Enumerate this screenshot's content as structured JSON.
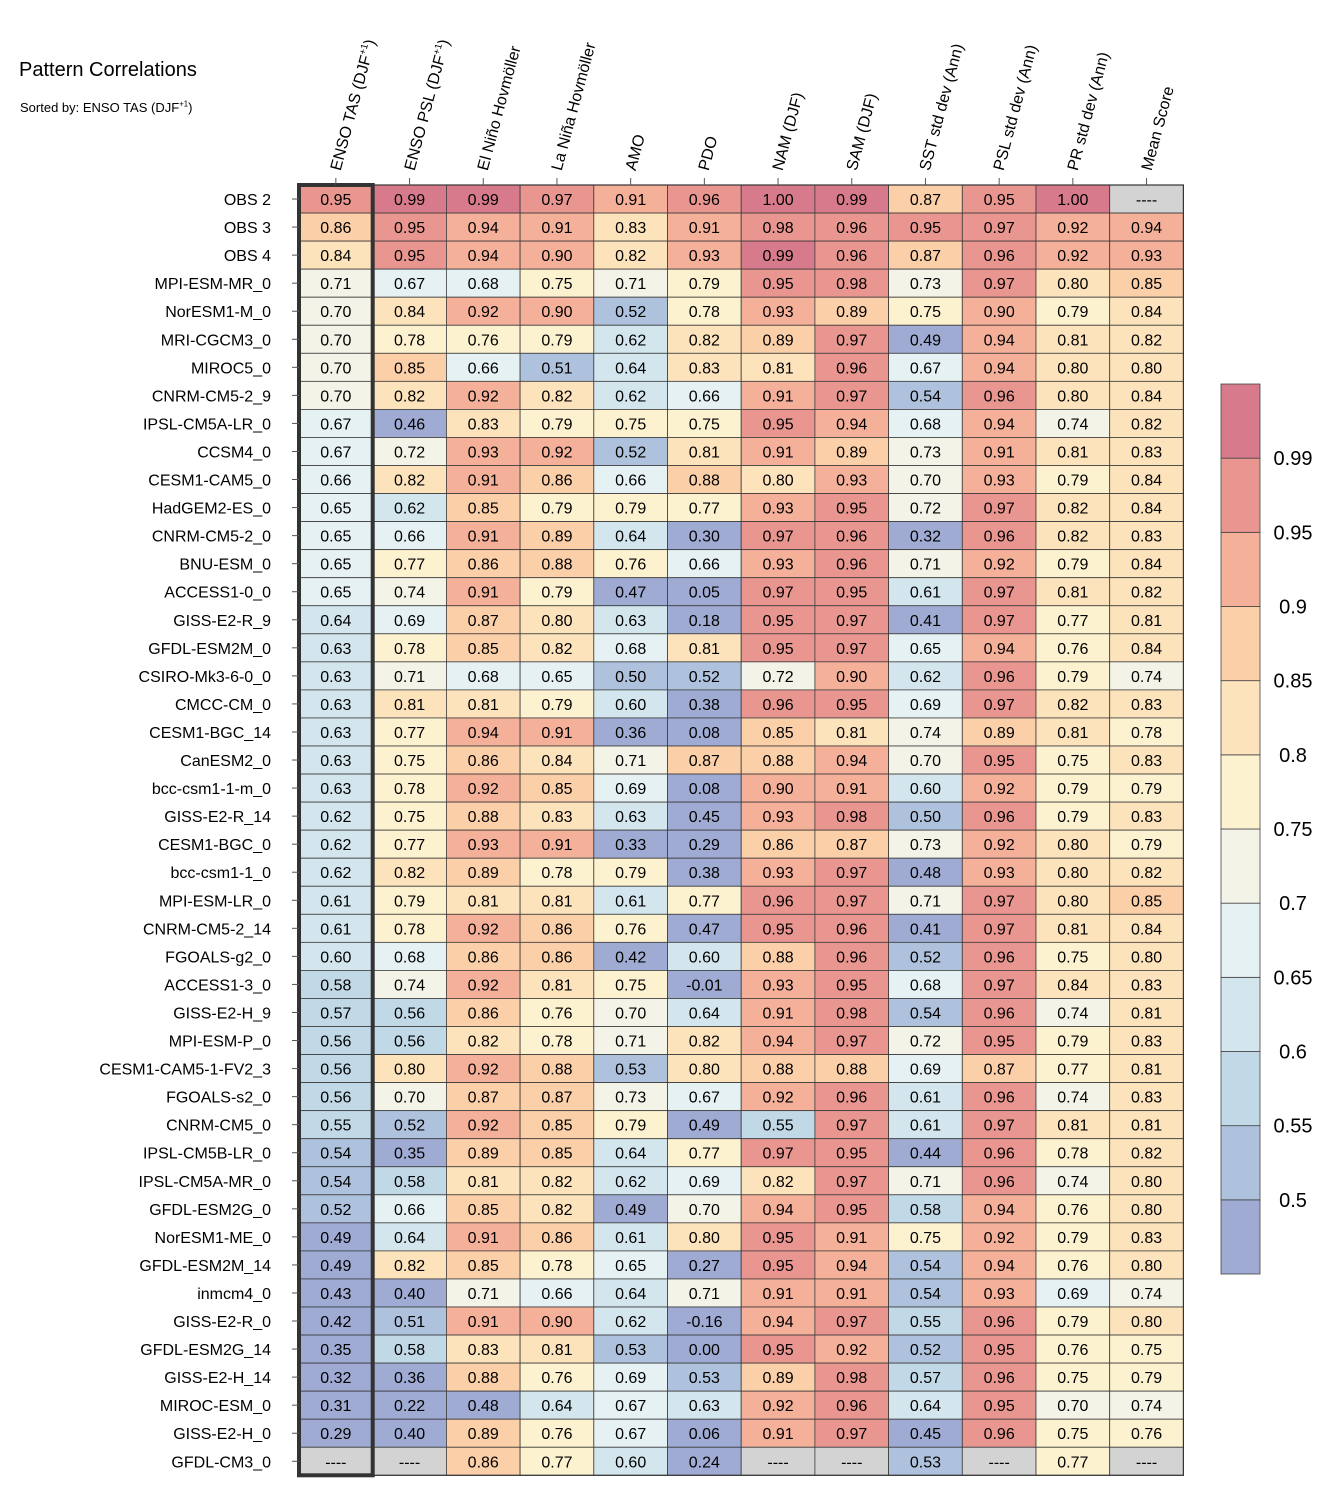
{
  "chart_data": {
    "type": "heatmap",
    "title": "Pattern Correlations",
    "subtitle": {
      "text": "Sorted by: ENSO TAS (DJF",
      "sup": "+1",
      "close": ")"
    },
    "columns": [
      {
        "text": "ENSO TAS (DJF",
        "sup": "+1",
        "close": ")"
      },
      {
        "text": "ENSO PSL (DJF",
        "sup": "+1",
        "close": ")"
      },
      {
        "text": "El Niño Hovmöller",
        "sup": "",
        "close": ""
      },
      {
        "text": "La Niña Hovmöller",
        "sup": "",
        "close": ""
      },
      {
        "text": "AMO",
        "sup": "",
        "close": ""
      },
      {
        "text": "PDO",
        "sup": "",
        "close": ""
      },
      {
        "text": "NAM (DJF)",
        "sup": "",
        "close": ""
      },
      {
        "text": "SAM (DJF)",
        "sup": "",
        "close": ""
      },
      {
        "text": "SST std dev (Ann)",
        "sup": "",
        "close": ""
      },
      {
        "text": "PSL std dev (Ann)",
        "sup": "",
        "close": ""
      },
      {
        "text": "PR std dev (Ann)",
        "sup": "",
        "close": ""
      },
      {
        "text": "Mean Score",
        "sup": "",
        "close": ""
      }
    ],
    "rows": [
      "OBS 2",
      "OBS 3",
      "OBS 4",
      "MPI-ESM-MR_0",
      "NorESM1-M_0",
      "MRI-CGCM3_0",
      "MIROC5_0",
      "CNRM-CM5-2_9",
      "IPSL-CM5A-LR_0",
      "CCSM4_0",
      "CESM1-CAM5_0",
      "HadGEM2-ES_0",
      "CNRM-CM5-2_0",
      "BNU-ESM_0",
      "ACCESS1-0_0",
      "GISS-E2-R_9",
      "GFDL-ESM2M_0",
      "CSIRO-Mk3-6-0_0",
      "CMCC-CM_0",
      "CESM1-BGC_14",
      "CanESM2_0",
      "bcc-csm1-1-m_0",
      "GISS-E2-R_14",
      "CESM1-BGC_0",
      "bcc-csm1-1_0",
      "MPI-ESM-LR_0",
      "CNRM-CM5-2_14",
      "FGOALS-g2_0",
      "ACCESS1-3_0",
      "GISS-E2-H_9",
      "MPI-ESM-P_0",
      "CESM1-CAM5-1-FV2_3",
      "FGOALS-s2_0",
      "CNRM-CM5_0",
      "IPSL-CM5B-LR_0",
      "IPSL-CM5A-MR_0",
      "GFDL-ESM2G_0",
      "NorESM1-ME_0",
      "GFDL-ESM2M_14",
      "inmcm4_0",
      "GISS-E2-R_0",
      "GFDL-ESM2G_14",
      "GISS-E2-H_14",
      "MIROC-ESM_0",
      "GISS-E2-H_0",
      "GFDL-CM3_0"
    ],
    "values": [
      [
        0.95,
        0.99,
        0.99,
        0.97,
        0.91,
        0.96,
        1.0,
        0.99,
        0.87,
        0.95,
        1.0,
        null
      ],
      [
        0.86,
        0.95,
        0.94,
        0.91,
        0.83,
        0.91,
        0.98,
        0.96,
        0.95,
        0.97,
        0.92,
        0.94
      ],
      [
        0.84,
        0.95,
        0.94,
        0.9,
        0.82,
        0.93,
        0.99,
        0.96,
        0.87,
        0.96,
        0.92,
        0.93
      ],
      [
        0.71,
        0.67,
        0.68,
        0.75,
        0.71,
        0.79,
        0.95,
        0.98,
        0.73,
        0.97,
        0.8,
        0.85
      ],
      [
        0.7,
        0.84,
        0.92,
        0.9,
        0.52,
        0.78,
        0.93,
        0.89,
        0.75,
        0.9,
        0.79,
        0.84
      ],
      [
        0.7,
        0.78,
        0.76,
        0.79,
        0.62,
        0.82,
        0.89,
        0.97,
        0.49,
        0.94,
        0.81,
        0.82
      ],
      [
        0.7,
        0.85,
        0.66,
        0.51,
        0.64,
        0.83,
        0.81,
        0.96,
        0.67,
        0.94,
        0.8,
        0.8
      ],
      [
        0.7,
        0.82,
        0.92,
        0.82,
        0.62,
        0.66,
        0.91,
        0.97,
        0.54,
        0.96,
        0.8,
        0.84
      ],
      [
        0.67,
        0.46,
        0.83,
        0.79,
        0.75,
        0.75,
        0.95,
        0.94,
        0.68,
        0.94,
        0.74,
        0.82
      ],
      [
        0.67,
        0.72,
        0.93,
        0.92,
        0.52,
        0.81,
        0.91,
        0.89,
        0.73,
        0.91,
        0.81,
        0.83
      ],
      [
        0.66,
        0.82,
        0.91,
        0.86,
        0.66,
        0.88,
        0.8,
        0.93,
        0.7,
        0.93,
        0.79,
        0.84
      ],
      [
        0.65,
        0.62,
        0.85,
        0.79,
        0.79,
        0.77,
        0.93,
        0.95,
        0.72,
        0.97,
        0.82,
        0.84
      ],
      [
        0.65,
        0.66,
        0.91,
        0.89,
        0.64,
        0.3,
        0.97,
        0.96,
        0.32,
        0.96,
        0.82,
        0.83
      ],
      [
        0.65,
        0.77,
        0.86,
        0.88,
        0.76,
        0.66,
        0.93,
        0.96,
        0.71,
        0.92,
        0.79,
        0.84
      ],
      [
        0.65,
        0.74,
        0.91,
        0.79,
        0.47,
        0.05,
        0.97,
        0.95,
        0.61,
        0.97,
        0.81,
        0.82
      ],
      [
        0.64,
        0.69,
        0.87,
        0.8,
        0.63,
        0.18,
        0.95,
        0.97,
        0.41,
        0.97,
        0.77,
        0.81
      ],
      [
        0.63,
        0.78,
        0.85,
        0.82,
        0.68,
        0.81,
        0.95,
        0.97,
        0.65,
        0.94,
        0.76,
        0.84
      ],
      [
        0.63,
        0.71,
        0.68,
        0.65,
        0.5,
        0.52,
        0.72,
        0.9,
        0.62,
        0.96,
        0.79,
        0.74
      ],
      [
        0.63,
        0.81,
        0.81,
        0.79,
        0.6,
        0.38,
        0.96,
        0.95,
        0.69,
        0.97,
        0.82,
        0.83
      ],
      [
        0.63,
        0.77,
        0.94,
        0.91,
        0.36,
        0.08,
        0.85,
        0.81,
        0.74,
        0.89,
        0.81,
        0.78
      ],
      [
        0.63,
        0.75,
        0.86,
        0.84,
        0.71,
        0.87,
        0.88,
        0.94,
        0.7,
        0.95,
        0.75,
        0.83
      ],
      [
        0.63,
        0.78,
        0.92,
        0.85,
        0.69,
        0.08,
        0.9,
        0.91,
        0.6,
        0.92,
        0.79,
        0.79
      ],
      [
        0.62,
        0.75,
        0.88,
        0.83,
        0.63,
        0.45,
        0.93,
        0.98,
        0.5,
        0.96,
        0.79,
        0.83
      ],
      [
        0.62,
        0.77,
        0.93,
        0.91,
        0.33,
        0.29,
        0.86,
        0.87,
        0.73,
        0.92,
        0.8,
        0.79
      ],
      [
        0.62,
        0.82,
        0.89,
        0.78,
        0.79,
        0.38,
        0.93,
        0.97,
        0.48,
        0.93,
        0.8,
        0.82
      ],
      [
        0.61,
        0.79,
        0.81,
        0.81,
        0.61,
        0.77,
        0.96,
        0.97,
        0.71,
        0.97,
        0.8,
        0.85
      ],
      [
        0.61,
        0.78,
        0.92,
        0.86,
        0.76,
        0.47,
        0.95,
        0.96,
        0.41,
        0.97,
        0.81,
        0.84
      ],
      [
        0.6,
        0.68,
        0.86,
        0.86,
        0.42,
        0.6,
        0.88,
        0.96,
        0.52,
        0.96,
        0.75,
        0.8
      ],
      [
        0.58,
        0.74,
        0.92,
        0.81,
        0.75,
        -0.01,
        0.93,
        0.95,
        0.68,
        0.97,
        0.84,
        0.83
      ],
      [
        0.57,
        0.56,
        0.86,
        0.76,
        0.7,
        0.64,
        0.91,
        0.98,
        0.54,
        0.96,
        0.74,
        0.81
      ],
      [
        0.56,
        0.56,
        0.82,
        0.78,
        0.71,
        0.82,
        0.94,
        0.97,
        0.72,
        0.95,
        0.79,
        0.83
      ],
      [
        0.56,
        0.8,
        0.92,
        0.88,
        0.53,
        0.8,
        0.88,
        0.88,
        0.69,
        0.87,
        0.77,
        0.81
      ],
      [
        0.56,
        0.7,
        0.87,
        0.87,
        0.73,
        0.67,
        0.92,
        0.96,
        0.61,
        0.96,
        0.74,
        0.83
      ],
      [
        0.55,
        0.52,
        0.92,
        0.85,
        0.79,
        0.49,
        0.55,
        0.97,
        0.61,
        0.97,
        0.81,
        0.81
      ],
      [
        0.54,
        0.35,
        0.89,
        0.85,
        0.64,
        0.77,
        0.97,
        0.95,
        0.44,
        0.96,
        0.78,
        0.82
      ],
      [
        0.54,
        0.58,
        0.81,
        0.82,
        0.62,
        0.69,
        0.82,
        0.97,
        0.71,
        0.96,
        0.74,
        0.8
      ],
      [
        0.52,
        0.66,
        0.85,
        0.82,
        0.49,
        0.7,
        0.94,
        0.95,
        0.58,
        0.94,
        0.76,
        0.8
      ],
      [
        0.49,
        0.64,
        0.91,
        0.86,
        0.61,
        0.8,
        0.95,
        0.91,
        0.75,
        0.92,
        0.79,
        0.83
      ],
      [
        0.49,
        0.82,
        0.85,
        0.78,
        0.65,
        0.27,
        0.95,
        0.94,
        0.54,
        0.94,
        0.76,
        0.8
      ],
      [
        0.43,
        0.4,
        0.71,
        0.66,
        0.64,
        0.71,
        0.91,
        0.91,
        0.54,
        0.93,
        0.69,
        0.74
      ],
      [
        0.42,
        0.51,
        0.91,
        0.9,
        0.62,
        -0.16,
        0.94,
        0.97,
        0.55,
        0.96,
        0.79,
        0.8
      ],
      [
        0.35,
        0.58,
        0.83,
        0.81,
        0.53,
        0.0,
        0.95,
        0.92,
        0.52,
        0.95,
        0.76,
        0.75
      ],
      [
        0.32,
        0.36,
        0.88,
        0.76,
        0.69,
        0.53,
        0.89,
        0.98,
        0.57,
        0.96,
        0.75,
        0.79
      ],
      [
        0.31,
        0.22,
        0.48,
        0.64,
        0.67,
        0.63,
        0.92,
        0.96,
        0.64,
        0.95,
        0.7,
        0.74
      ],
      [
        0.29,
        0.4,
        0.89,
        0.76,
        0.67,
        0.06,
        0.91,
        0.97,
        0.45,
        0.96,
        0.75,
        0.76
      ],
      [
        null,
        null,
        0.86,
        0.77,
        0.6,
        0.24,
        null,
        null,
        0.53,
        null,
        0.77,
        null
      ]
    ],
    "missing_label": "----",
    "highlighted_column": 0,
    "colorbar": {
      "levels": [
        0.5,
        0.55,
        0.6,
        0.65,
        0.7,
        0.75,
        0.8,
        0.85,
        0.9,
        0.95,
        0.99
      ],
      "tick_labels": [
        "0.5",
        "0.55",
        "0.6",
        "0.65",
        "0.7",
        "0.75",
        "0.8",
        "0.85",
        "0.9",
        "0.95",
        "0.99"
      ],
      "colors": [
        "#9fabd3",
        "#afc2dd",
        "#c1d9e6",
        "#d3e6ee",
        "#e6f1f4",
        "#f4f3e7",
        "#fdf2cf",
        "#fde3bb",
        "#fbcfa8",
        "#f5b09a",
        "#ea9690",
        "#d77b8c"
      ],
      "missing_color": "#d3d3d3"
    }
  }
}
